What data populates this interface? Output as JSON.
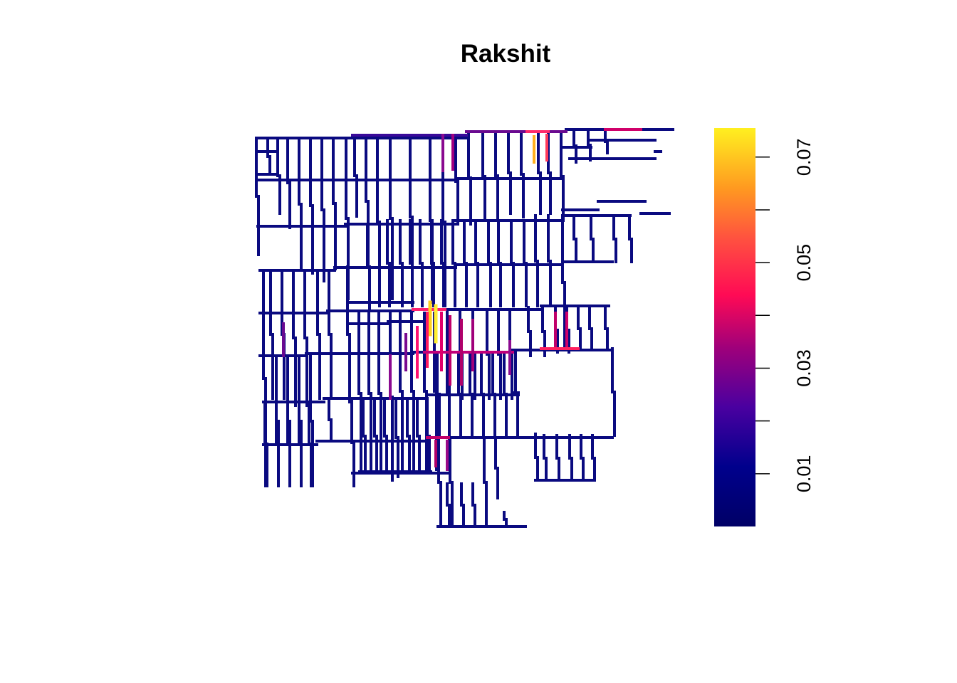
{
  "title": "Rakshit",
  "legend": {
    "ticks": [
      {
        "value": 0.01,
        "label": "0.01"
      },
      {
        "value": 0.02,
        "label": ""
      },
      {
        "value": 0.03,
        "label": "0.03"
      },
      {
        "value": 0.04,
        "label": ""
      },
      {
        "value": 0.05,
        "label": "0.05"
      },
      {
        "value": 0.06,
        "label": ""
      },
      {
        "value": 0.07,
        "label": "0.07"
      }
    ],
    "min": 0.0,
    "max": 0.0755,
    "colors": {
      "low": "#000066",
      "mid1": "#1a00aa",
      "mid2": "#8a0088",
      "mid3": "#ff0066",
      "mid4": "#ff6633",
      "high": "#ffee00"
    }
  }
}
